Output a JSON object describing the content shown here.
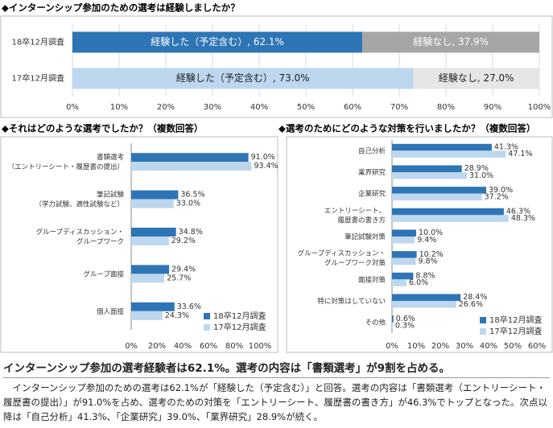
{
  "chart_data": [
    {
      "type": "stacked_bar",
      "title": "◆インターンシップ参加のための選考は経験しましたか？",
      "categories": [
        "18卒12月調査",
        "17卒12月調査"
      ],
      "series": [
        {
          "color": [
            "#2e75b6",
            "#bdd7ee"
          ],
          "values": [
            62.1,
            73.0
          ],
          "value_labels": [
            "経験した（予定含む）, 62.1%",
            "経験した（予定含む）, 73.0%"
          ]
        },
        {
          "color": [
            "#a6a6a6",
            "#e7e6e6"
          ],
          "values": [
            37.9,
            27.0
          ],
          "value_labels": [
            "経験なし, 37.9%",
            "経験なし, 27.0%"
          ]
        }
      ],
      "xlim": [
        0,
        100
      ],
      "xticks": [
        {
          "value": 0,
          "label": "0%"
        },
        {
          "value": 10,
          "label": "10%"
        },
        {
          "value": 20,
          "label": "20%"
        },
        {
          "value": 30,
          "label": "30%"
        },
        {
          "value": 40,
          "label": "40%"
        },
        {
          "value": 50,
          "label": "50%"
        },
        {
          "value": 60,
          "label": "60%"
        },
        {
          "value": 70,
          "label": "70%"
        },
        {
          "value": 80,
          "label": "80%"
        },
        {
          "value": 90,
          "label": "90%"
        },
        {
          "value": 100,
          "label": "100%"
        }
      ],
      "grid": true
    },
    {
      "type": "bar",
      "title": "◆それはどのような選考でしたか？（複数回答）",
      "categories": [
        [
          "書類選考",
          "（エントリーシート・履歴書の提出）"
        ],
        [
          "筆記試験",
          "（学力試験、適性試験など）"
        ],
        [
          "グループディスカッション・",
          "グループワーク"
        ],
        [
          "グループ面接"
        ],
        [
          "個人面接"
        ]
      ],
      "series": [
        {
          "name": "18卒12月調査",
          "color": "#2e75b6",
          "values": [
            91.0,
            36.5,
            34.8,
            29.4,
            33.6
          ],
          "value_labels": [
            "91.0%",
            "36.5%",
            "34.8%",
            "29.4%",
            "33.6%"
          ]
        },
        {
          "name": "17卒12月調査",
          "color": "#bdd7ee",
          "values": [
            93.4,
            33.0,
            29.2,
            25.7,
            24.3
          ],
          "value_labels": [
            "93.4%",
            "33.0%",
            "29.2%",
            "25.7%",
            "24.3%"
          ]
        }
      ],
      "xlim": [
        0,
        100
      ],
      "xticks": [
        {
          "value": 0,
          "label": "0%"
        },
        {
          "value": 20,
          "label": "20%"
        },
        {
          "value": 40,
          "label": "40%"
        },
        {
          "value": 60,
          "label": "60%"
        },
        {
          "value": 80,
          "label": "80%"
        },
        {
          "value": 100,
          "label": "100%"
        }
      ],
      "legend": "lower-right"
    },
    {
      "type": "bar",
      "title": "◆選考のためにどのような対策を行いましたか？（複数回答）",
      "categories": [
        [
          "自己分析"
        ],
        [
          "業界研究"
        ],
        [
          "企業研究"
        ],
        [
          "エントリーシート、",
          "履歴書の書き方"
        ],
        [
          "筆記試験対策"
        ],
        [
          "グループディスカッション・",
          "グループワーク対策"
        ],
        [
          "面接対策"
        ],
        [
          "特に対策はしていない"
        ],
        [
          "その他"
        ]
      ],
      "series": [
        {
          "name": "18卒12月調査",
          "color": "#2e75b6",
          "values": [
            41.3,
            28.9,
            39.0,
            46.3,
            10.0,
            10.2,
            8.8,
            28.4,
            0.6
          ],
          "value_labels": [
            "41.3%",
            "28.9%",
            "39.0%",
            "46.3%",
            "10.0%",
            "10.2%",
            "8.8%",
            "28.4%",
            "0.6%"
          ]
        },
        {
          "name": "17卒12月調査",
          "color": "#bdd7ee",
          "values": [
            47.1,
            31.0,
            37.2,
            48.3,
            9.4,
            9.8,
            6.0,
            26.6,
            0.3
          ],
          "value_labels": [
            "47.1%",
            "31.0%",
            "37.2%",
            "48.3%",
            "9.4%",
            "9.8%",
            "6.0%",
            "26.6%",
            "0.3%"
          ]
        }
      ],
      "xlim": [
        0,
        60
      ],
      "xticks": [
        {
          "value": 0,
          "label": "0%"
        },
        {
          "value": 10,
          "label": "10%"
        },
        {
          "value": 20,
          "label": "20%"
        },
        {
          "value": 30,
          "label": "30%"
        },
        {
          "value": 40,
          "label": "40%"
        },
        {
          "value": 50,
          "label": "50%"
        },
        {
          "value": 60,
          "label": "60%"
        }
      ],
      "legend": "lower-right"
    }
  ],
  "summary": {
    "headline": "インターンシップ参加の選考経験者は62.1%。選考の内容は「書類選考」が9割を占める。",
    "body": "インターンシップ参加のための選考は62.1%が「経験した（予定含む）」と回答。選考の内容は「書類選考（エントリーシート・履歴書の提出）」が91.0%を占め、選考のための対策を「エントリーシート、履歴書の書き方」が46.3%でトップとなった。次点以降は「自己分析」41.3%、「企業研究」39.0%、「業界研究」28.9%が続く。"
  }
}
